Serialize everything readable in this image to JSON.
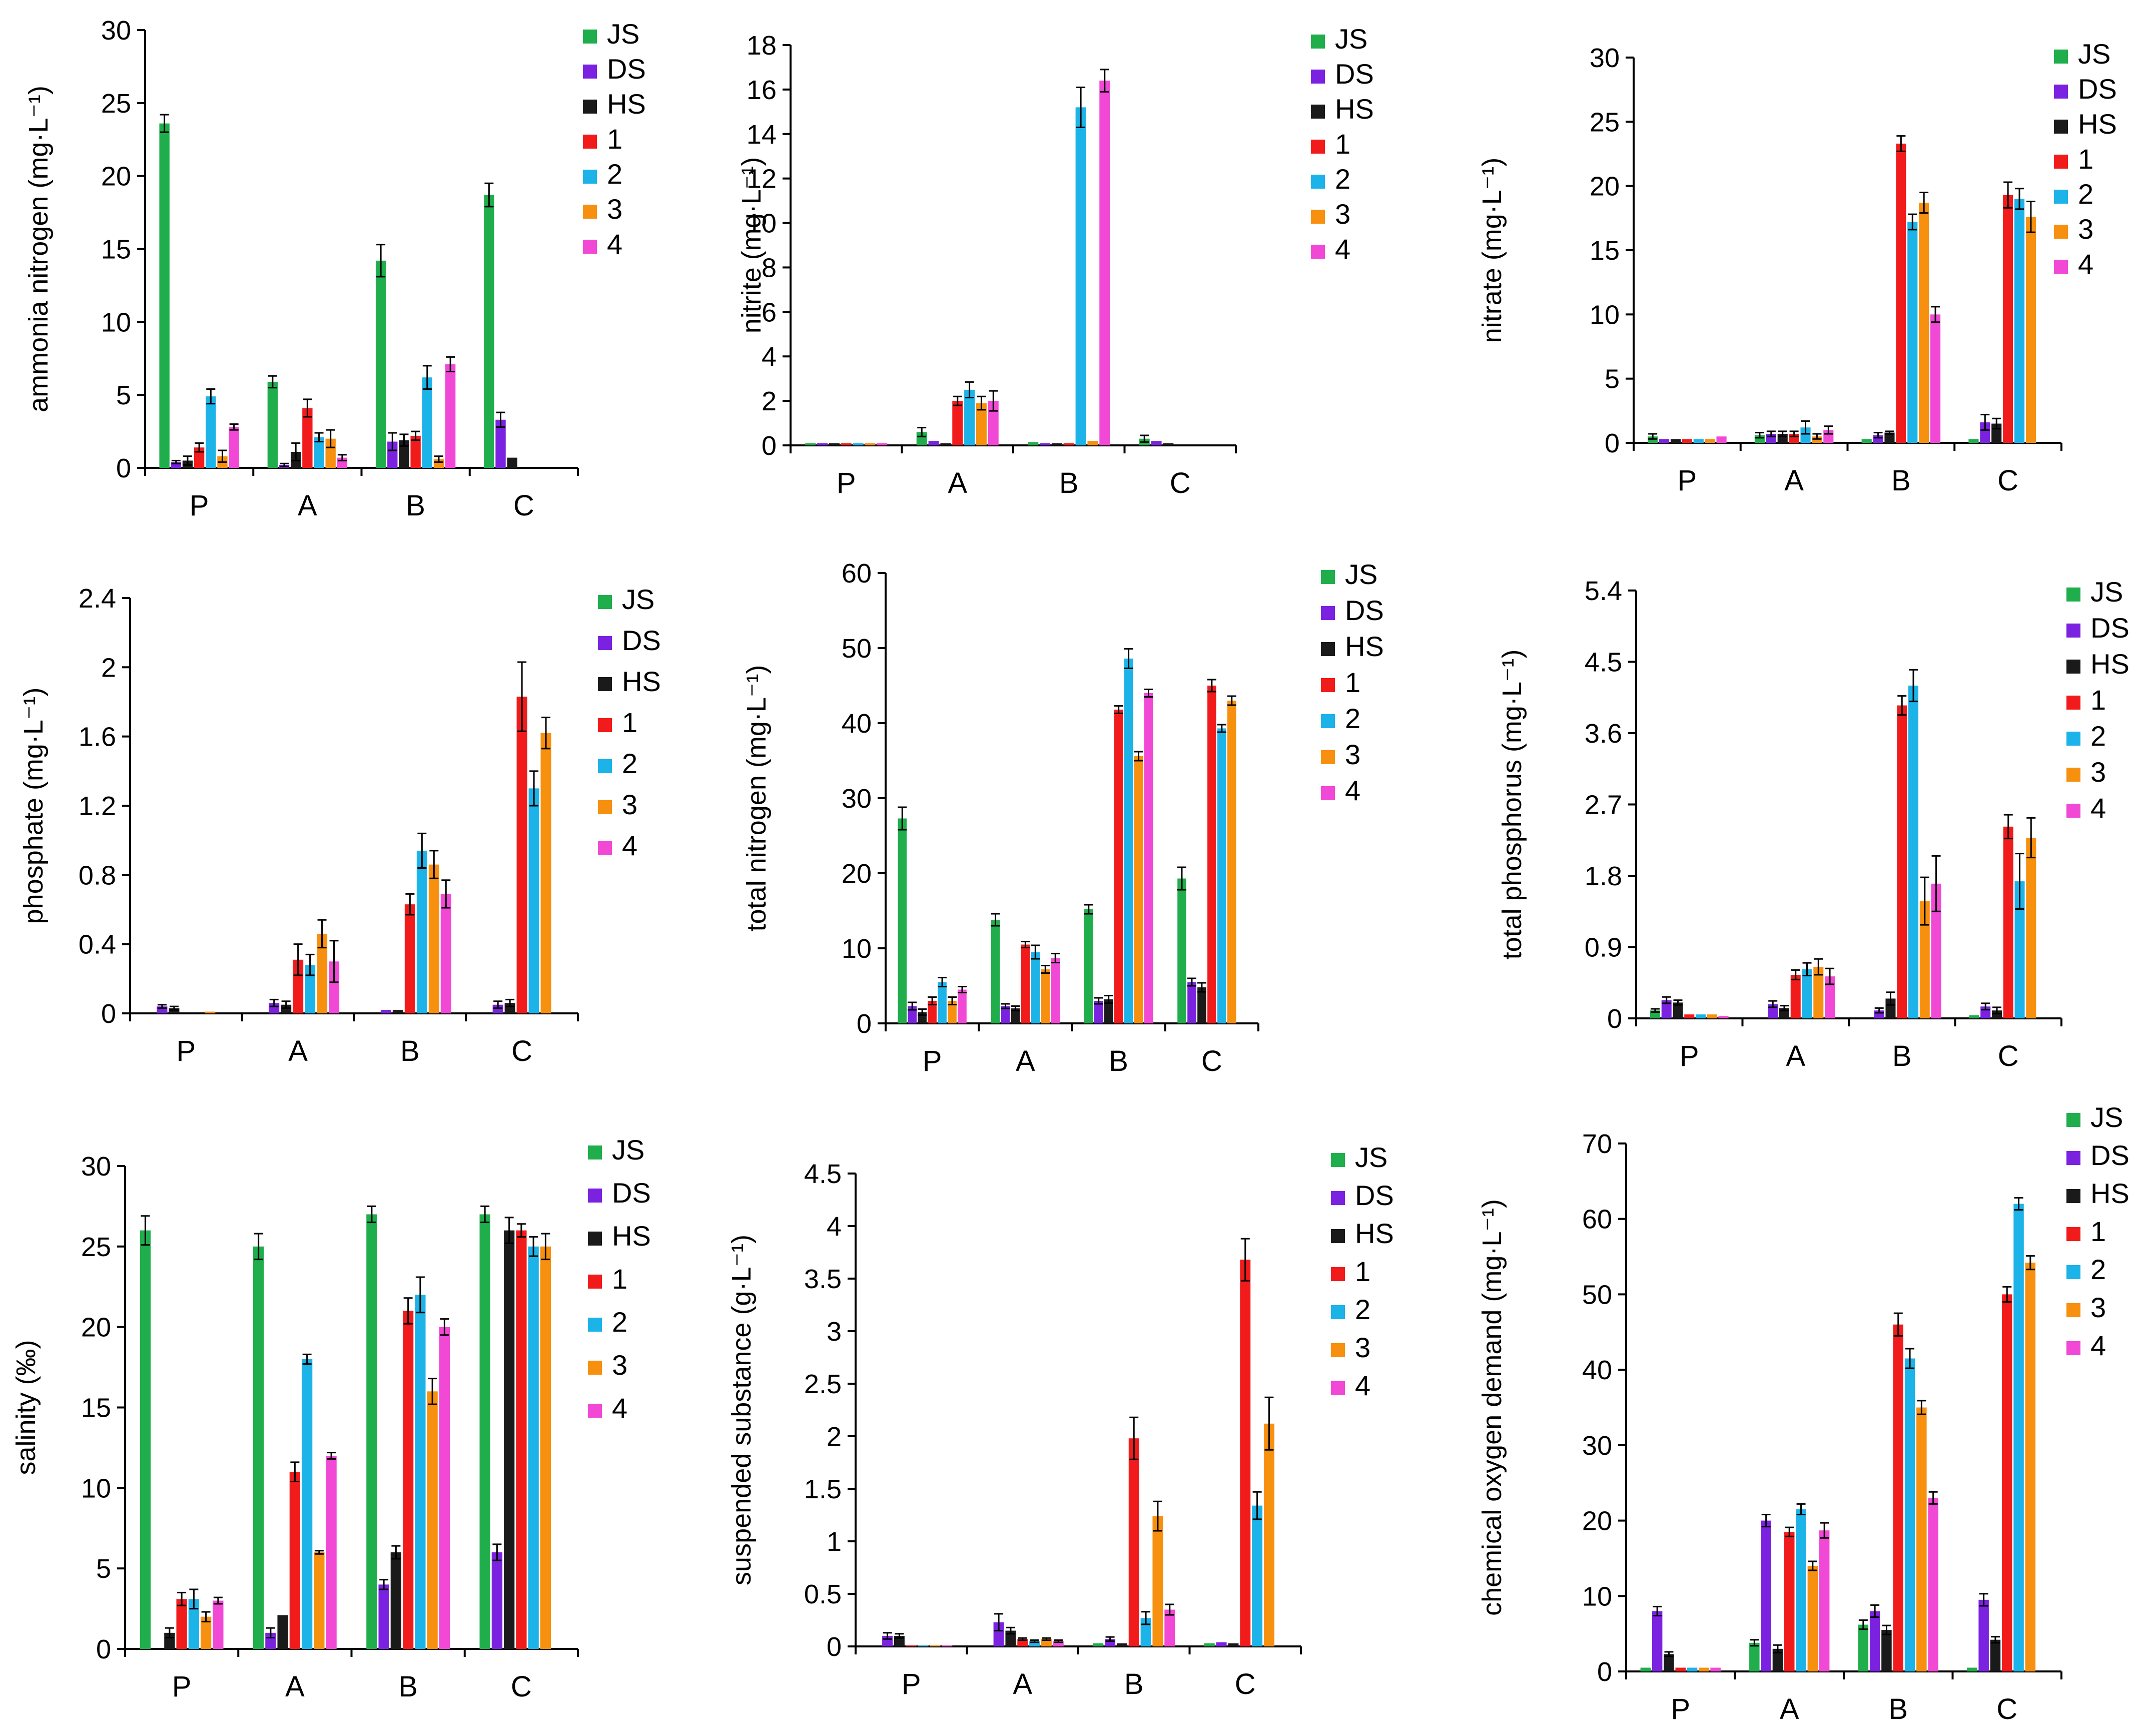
{
  "series": [
    {
      "name": "JS",
      "color": "#1FAE4B"
    },
    {
      "name": "DS",
      "color": "#7B22E0"
    },
    {
      "name": "HS",
      "color": "#1A1A1A"
    },
    {
      "name": "1",
      "color": "#F21B1B"
    },
    {
      "name": "2",
      "color": "#1CB3E8"
    },
    {
      "name": "3",
      "color": "#F7900F"
    },
    {
      "name": "4",
      "color": "#F248D6"
    }
  ],
  "chart_data": [
    {
      "type": "bar",
      "id": "ammonia",
      "ylabel": "ammonia nitrogen (mg·L⁻¹)",
      "categories": [
        "P",
        "A",
        "B",
        "C"
      ],
      "ylim": [
        0,
        30
      ],
      "ticks": [
        "0",
        "5",
        "10",
        "15",
        "20",
        "25",
        "30"
      ],
      "tick_values": [
        0,
        5,
        10,
        15,
        20,
        25,
        30
      ],
      "values": [
        [
          23.6,
          0.4,
          0.5,
          1.4,
          4.9,
          0.8,
          2.8
        ],
        [
          5.9,
          0.2,
          1.1,
          4.1,
          2.1,
          2.0,
          0.7
        ],
        [
          14.2,
          1.8,
          1.9,
          2.2,
          6.2,
          0.6,
          7.1
        ],
        [
          18.7,
          3.3,
          0.7,
          0,
          0,
          0,
          0
        ]
      ],
      "errors": [
        [
          0.6,
          0.1,
          0.3,
          0.3,
          0.5,
          0.4,
          0.2
        ],
        [
          0.4,
          0.1,
          0.6,
          0.6,
          0.3,
          0.6,
          0.2
        ],
        [
          1.1,
          0.6,
          0.4,
          0.3,
          0.8,
          0.2,
          0.5
        ],
        [
          0.8,
          0.5,
          0,
          0,
          0,
          0,
          0
        ]
      ]
    },
    {
      "type": "bar",
      "id": "nitrite",
      "ylabel": "nitrite (mg·L⁻¹)",
      "categories": [
        "P",
        "A",
        "B",
        "C"
      ],
      "ylim": [
        0,
        18
      ],
      "ticks": [
        "0",
        "2",
        "4",
        "6",
        "8",
        "10",
        "12",
        "14",
        "16",
        "18"
      ],
      "tick_values": [
        0,
        2,
        4,
        6,
        8,
        10,
        12,
        14,
        16,
        18
      ],
      "values": [
        [
          0.1,
          0.1,
          0.1,
          0.1,
          0.1,
          0.1,
          0.1
        ],
        [
          0.6,
          0.2,
          0.1,
          2.0,
          2.5,
          1.9,
          2.0
        ],
        [
          0.15,
          0.1,
          0.1,
          0.1,
          15.2,
          0.2,
          16.4
        ],
        [
          0.3,
          0.2,
          0.1,
          0,
          0,
          0,
          0
        ]
      ],
      "errors": [
        [
          0,
          0,
          0,
          0,
          0,
          0,
          0
        ],
        [
          0.2,
          0,
          0,
          0.2,
          0.35,
          0.3,
          0.45
        ],
        [
          0,
          0,
          0,
          0,
          0.9,
          0,
          0.5
        ],
        [
          0.15,
          0,
          0,
          0,
          0,
          0,
          0
        ]
      ]
    },
    {
      "type": "bar",
      "id": "nitrate",
      "ylabel": "nitrate (mg·L⁻¹)",
      "categories": [
        "P",
        "A",
        "B",
        "C"
      ],
      "ylim": [
        0,
        30
      ],
      "ticks": [
        "0",
        "5",
        "10",
        "15",
        "20",
        "25",
        "30"
      ],
      "tick_values": [
        0,
        5,
        10,
        15,
        20,
        25,
        30
      ],
      "values": [
        [
          0.5,
          0.3,
          0.3,
          0.3,
          0.3,
          0.3,
          0.5
        ],
        [
          0.6,
          0.7,
          0.7,
          0.7,
          1.2,
          0.5,
          1.0
        ],
        [
          0.3,
          0.6,
          0.8,
          23.3,
          17.2,
          18.7,
          10.0
        ],
        [
          0.3,
          1.6,
          1.5,
          19.3,
          19.0,
          17.6,
          0
        ]
      ],
      "errors": [
        [
          0.2,
          0,
          0,
          0,
          0,
          0,
          0
        ],
        [
          0.2,
          0.2,
          0.2,
          0.2,
          0.5,
          0.2,
          0.3
        ],
        [
          0,
          0.2,
          0.1,
          0.6,
          0.6,
          0.8,
          0.6
        ],
        [
          0,
          0.6,
          0.4,
          1.0,
          0.8,
          1.2,
          0
        ]
      ]
    },
    {
      "type": "bar",
      "id": "phosphate",
      "ylabel": "phosphate (mg·L⁻¹)",
      "categories": [
        "P",
        "A",
        "B",
        "C"
      ],
      "ylim": [
        0,
        2.4
      ],
      "ticks": [
        "0",
        "0.4",
        "0.8",
        "1.2",
        "1.6",
        "2",
        "2.4"
      ],
      "tick_values": [
        0,
        0.4,
        0.8,
        1.2,
        1.6,
        2.0,
        2.4
      ],
      "values": [
        [
          0,
          0.04,
          0.03,
          0,
          0,
          0.01,
          0
        ],
        [
          0,
          0.06,
          0.05,
          0.31,
          0.28,
          0.46,
          0.3
        ],
        [
          0,
          0.02,
          0.02,
          0.63,
          0.94,
          0.86,
          0.69
        ],
        [
          0,
          0.05,
          0.06,
          1.83,
          1.3,
          1.62,
          0
        ]
      ],
      "errors": [
        [
          0,
          0.01,
          0.01,
          0,
          0,
          0,
          0
        ],
        [
          0,
          0.02,
          0.02,
          0.09,
          0.06,
          0.08,
          0.12
        ],
        [
          0,
          0,
          0,
          0.06,
          0.1,
          0.08,
          0.08
        ],
        [
          0,
          0.02,
          0.02,
          0.2,
          0.1,
          0.09,
          0
        ]
      ]
    },
    {
      "type": "bar",
      "id": "tn",
      "ylabel": "total nitrogen (mg·L⁻¹)",
      "categories": [
        "P",
        "A",
        "B",
        "C"
      ],
      "ylim": [
        0,
        60
      ],
      "ticks": [
        "0",
        "10",
        "20",
        "30",
        "40",
        "50",
        "60"
      ],
      "tick_values": [
        0,
        10,
        20,
        30,
        40,
        50,
        60
      ],
      "values": [
        [
          27.3,
          2.3,
          1.5,
          3.0,
          5.5,
          3.0,
          4.5
        ],
        [
          13.8,
          2.3,
          2.0,
          10.5,
          9.5,
          7.2,
          8.7
        ],
        [
          15.2,
          3.0,
          3.2,
          41.8,
          48.6,
          35.6,
          44.0
        ],
        [
          19.3,
          5.5,
          4.8,
          45.0,
          39.3,
          43.0,
          0
        ]
      ],
      "errors": [
        [
          1.5,
          0.5,
          0.4,
          0.5,
          0.6,
          0.5,
          0.4
        ],
        [
          0.8,
          0.3,
          0.3,
          0.4,
          0.9,
          0.5,
          0.6
        ],
        [
          0.6,
          0.4,
          0.5,
          0.5,
          1.3,
          0.6,
          0.5
        ],
        [
          1.5,
          0.5,
          0.6,
          0.8,
          0.5,
          0.6,
          0
        ]
      ]
    },
    {
      "type": "bar",
      "id": "tp",
      "ylabel": "total phosphorus (mg·L⁻¹)",
      "categories": [
        "P",
        "A",
        "B",
        "C"
      ],
      "ylim": [
        0,
        5.4
      ],
      "ticks": [
        "0",
        "0.9",
        "1.8",
        "2.7",
        "3.6",
        "4.5",
        "5.4"
      ],
      "tick_values": [
        0,
        0.9,
        1.8,
        2.7,
        3.6,
        4.5,
        5.4
      ],
      "values": [
        [
          0.1,
          0.23,
          0.2,
          0.05,
          0.05,
          0.05,
          0.03
        ],
        [
          0,
          0.18,
          0.13,
          0.55,
          0.62,
          0.65,
          0.53
        ],
        [
          0,
          0.1,
          0.25,
          3.95,
          4.2,
          1.48,
          1.7
        ],
        [
          0.04,
          0.15,
          0.1,
          2.42,
          1.73,
          2.28,
          0
        ]
      ],
      "errors": [
        [
          0.02,
          0.04,
          0.03,
          0,
          0,
          0,
          0
        ],
        [
          0,
          0.04,
          0.03,
          0.06,
          0.08,
          0.1,
          0.1
        ],
        [
          0,
          0.03,
          0.08,
          0.12,
          0.2,
          0.3,
          0.35
        ],
        [
          0,
          0.04,
          0.04,
          0.15,
          0.35,
          0.25,
          0
        ]
      ]
    },
    {
      "type": "bar",
      "id": "salinity",
      "ylabel": "salinity (‰)",
      "categories": [
        "P",
        "A",
        "B",
        "C"
      ],
      "ylim": [
        0,
        30
      ],
      "ticks": [
        "0",
        "5",
        "10",
        "15",
        "20",
        "25",
        "30"
      ],
      "tick_values": [
        0,
        5,
        10,
        15,
        20,
        25,
        30
      ],
      "values": [
        [
          26.0,
          0,
          1.0,
          3.1,
          3.1,
          2.0,
          3.0
        ],
        [
          25.0,
          1.0,
          2.1,
          11.0,
          18.0,
          6.0,
          12.0
        ],
        [
          27.0,
          4.0,
          6.0,
          21.0,
          22.0,
          16.0,
          20.0
        ],
        [
          27.0,
          6.0,
          26.0,
          26.0,
          25.0,
          25.0,
          0
        ]
      ],
      "errors": [
        [
          0.9,
          0,
          0.3,
          0.4,
          0.6,
          0.3,
          0.2
        ],
        [
          0.8,
          0.3,
          0,
          0.6,
          0.3,
          0.1,
          0.2
        ],
        [
          0.5,
          0.3,
          0.4,
          0.8,
          1.1,
          0.8,
          0.5
        ],
        [
          0.5,
          0.5,
          0.8,
          0.4,
          0.6,
          0.8,
          0
        ]
      ]
    },
    {
      "type": "bar",
      "id": "ss",
      "ylabel": "suspended substance (g·L⁻¹)",
      "categories": [
        "P",
        "A",
        "B",
        "C"
      ],
      "ylim": [
        0,
        4.5
      ],
      "ticks": [
        "0",
        "0.5",
        "1",
        "1.5",
        "2",
        "2.5",
        "3",
        "3.5",
        "4",
        "4.5"
      ],
      "tick_values": [
        0,
        0.5,
        1,
        1.5,
        2,
        2.5,
        3,
        3.5,
        4,
        4.5
      ],
      "values": [
        [
          0,
          0.1,
          0.1,
          0.01,
          0.01,
          0.01,
          0.01
        ],
        [
          0,
          0.23,
          0.15,
          0.07,
          0.05,
          0.07,
          0.05
        ],
        [
          0.03,
          0.07,
          0.03,
          1.98,
          0.27,
          1.24,
          0.35
        ],
        [
          0.03,
          0.04,
          0.03,
          3.68,
          1.34,
          2.12,
          0
        ]
      ],
      "errors": [
        [
          0,
          0.03,
          0.02,
          0,
          0,
          0,
          0
        ],
        [
          0,
          0.08,
          0.03,
          0.01,
          0.01,
          0.01,
          0.01
        ],
        [
          0,
          0.02,
          0,
          0.2,
          0.06,
          0.14,
          0.05
        ],
        [
          0,
          0,
          0,
          0.2,
          0.13,
          0.25,
          0
        ]
      ]
    },
    {
      "type": "bar",
      "id": "cod",
      "ylabel": "chemical oxygen demand (mg·L⁻¹)",
      "categories": [
        "P",
        "A",
        "B",
        "C"
      ],
      "ylim": [
        0,
        70
      ],
      "ticks": [
        "0",
        "10",
        "20",
        "30",
        "40",
        "50",
        "60",
        "70"
      ],
      "tick_values": [
        0,
        10,
        20,
        30,
        40,
        50,
        60,
        70
      ],
      "values": [
        [
          0.5,
          8.0,
          2.3,
          0.5,
          0.5,
          0.5,
          0.5
        ],
        [
          3.8,
          20.0,
          3.0,
          18.5,
          21.5,
          14.0,
          18.7
        ],
        [
          6.2,
          8.0,
          5.5,
          46.0,
          41.5,
          35.0,
          23.0
        ],
        [
          0.5,
          9.5,
          4.2,
          50.0,
          62.0,
          54.2,
          0
        ]
      ],
      "errors": [
        [
          0,
          0.6,
          0.3,
          0,
          0,
          0,
          0
        ],
        [
          0.4,
          0.8,
          0.5,
          0.6,
          0.7,
          0.6,
          1.0
        ],
        [
          0.6,
          0.8,
          0.6,
          1.5,
          1.3,
          0.9,
          0.8
        ],
        [
          0,
          0.8,
          0.4,
          1.0,
          0.8,
          0.9,
          0
        ]
      ]
    }
  ]
}
